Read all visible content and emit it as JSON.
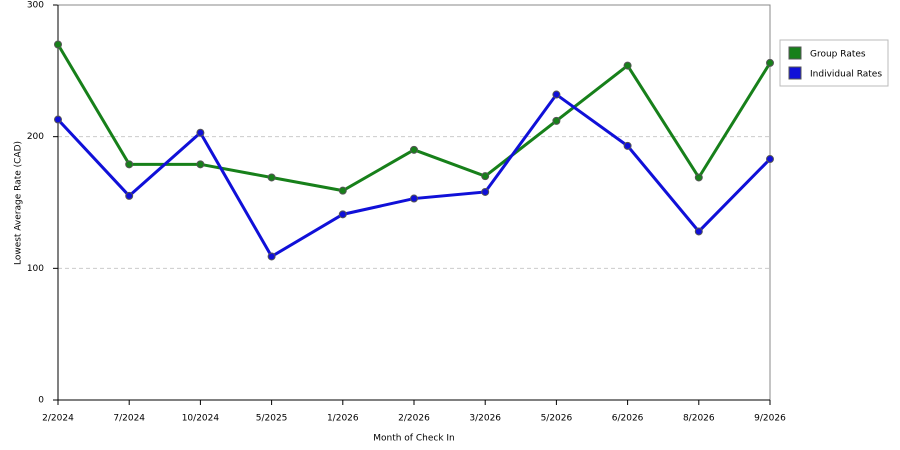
{
  "chart_data": {
    "type": "line",
    "x_label": "Month of Check In",
    "y_label": "Lowest Average Rate (CAD)",
    "categories": [
      "2/2024",
      "7/2024",
      "10/2024",
      "5/2025",
      "1/2026",
      "2/2026",
      "3/2026",
      "5/2026",
      "6/2026",
      "8/2026",
      "9/2026"
    ],
    "series": [
      {
        "name": "Group Rates",
        "color": "#17801a",
        "values": [
          270,
          179,
          179,
          169,
          159,
          190,
          170,
          212,
          254,
          169,
          256
        ]
      },
      {
        "name": "Individual Rates",
        "color": "#1010d8",
        "values": [
          213,
          155,
          203,
          109,
          141,
          153,
          158,
          232,
          193,
          128,
          183
        ]
      }
    ],
    "ylim": [
      0,
      300
    ],
    "yticks": [
      0,
      100,
      200,
      300
    ],
    "grid": true,
    "legend": "right"
  }
}
